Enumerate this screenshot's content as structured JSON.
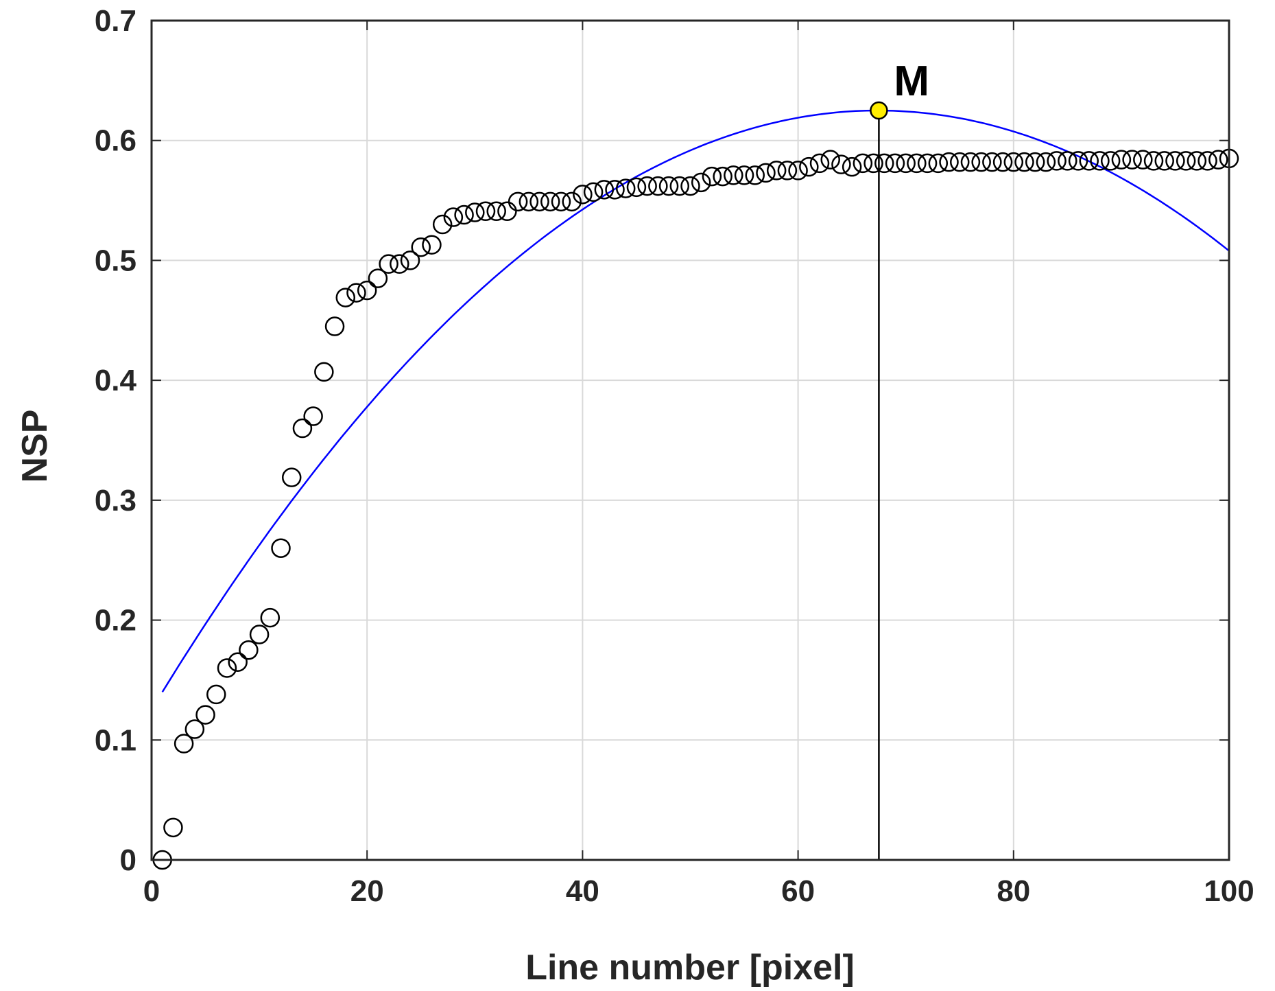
{
  "chart_data": {
    "type": "scatter",
    "title": "",
    "xlabel": "Line number [pixel]",
    "ylabel": "NSP",
    "xlim": [
      0,
      100
    ],
    "ylim": [
      0,
      0.7
    ],
    "xticks": [
      "0",
      "20",
      "40",
      "60",
      "80",
      "100"
    ],
    "yticks": [
      "0",
      "0.1",
      "0.2",
      "0.3",
      "0.4",
      "0.5",
      "0.6",
      "0.7"
    ],
    "grid": true,
    "legend": "none",
    "colors": {
      "points": "#000000",
      "fit": "#0000ff",
      "marker_fill": "#ffee00",
      "grid": "#d9d9d9",
      "axes": "#262626"
    },
    "series": [
      {
        "kind": "scatter-open-circles",
        "x": [
          1,
          2,
          3,
          4,
          5,
          6,
          7,
          8,
          9,
          10,
          11,
          12,
          13,
          14,
          15,
          16,
          17,
          18,
          19,
          20,
          21,
          22,
          23,
          24,
          25,
          26,
          27,
          28,
          29,
          30,
          31,
          32,
          33,
          34,
          35,
          36,
          37,
          38,
          39,
          40,
          41,
          42,
          43,
          44,
          45,
          46,
          47,
          48,
          49,
          50,
          51,
          52,
          53,
          54,
          55,
          56,
          57,
          58,
          59,
          60,
          61,
          62,
          63,
          64,
          65,
          66,
          67,
          68,
          69,
          70,
          71,
          72,
          73,
          74,
          75,
          76,
          77,
          78,
          79,
          80,
          81,
          82,
          83,
          84,
          85,
          86,
          87,
          88,
          89,
          90,
          91,
          92,
          93,
          94,
          95,
          96,
          97,
          98,
          99,
          100
        ],
        "y": [
          0.0,
          0.027,
          0.097,
          0.109,
          0.121,
          0.138,
          0.16,
          0.165,
          0.175,
          0.188,
          0.202,
          0.26,
          0.319,
          0.36,
          0.37,
          0.407,
          0.445,
          0.469,
          0.473,
          0.475,
          0.485,
          0.497,
          0.497,
          0.5,
          0.511,
          0.513,
          0.53,
          0.536,
          0.538,
          0.54,
          0.541,
          0.541,
          0.541,
          0.549,
          0.549,
          0.549,
          0.549,
          0.549,
          0.549,
          0.555,
          0.557,
          0.559,
          0.559,
          0.56,
          0.561,
          0.562,
          0.562,
          0.562,
          0.562,
          0.562,
          0.565,
          0.57,
          0.57,
          0.571,
          0.571,
          0.571,
          0.573,
          0.575,
          0.575,
          0.575,
          0.578,
          0.581,
          0.584,
          0.58,
          0.578,
          0.581,
          0.581,
          0.581,
          0.581,
          0.581,
          0.581,
          0.581,
          0.581,
          0.582,
          0.582,
          0.582,
          0.582,
          0.582,
          0.582,
          0.582,
          0.582,
          0.582,
          0.582,
          0.583,
          0.583,
          0.583,
          0.583,
          0.583,
          0.583,
          0.584,
          0.584,
          0.584,
          0.583,
          0.583,
          0.583,
          0.583,
          0.583,
          0.583,
          0.584,
          0.585
        ]
      },
      {
        "kind": "fit-curve",
        "equation": "quadratic",
        "x": [
          1,
          67.5,
          100
        ],
        "y": [
          0.14,
          0.625,
          0.508
        ]
      }
    ],
    "annotations": [
      {
        "label": "M",
        "x": 67.5,
        "y": 0.625,
        "vertical_line": true
      }
    ]
  }
}
